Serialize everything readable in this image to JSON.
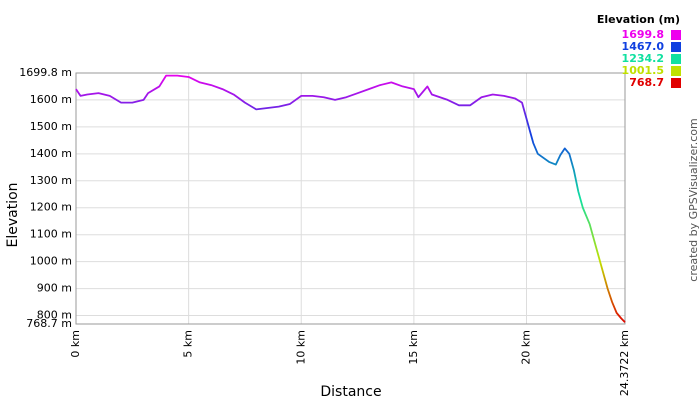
{
  "chart_data": {
    "type": "line",
    "x_label": "Distance",
    "y_label": "Elevation",
    "credit": "created by GPSVisualizer.com",
    "series": [
      {
        "name": "Elevation",
        "x": [
          0,
          0.2,
          0.5,
          1,
          1.5,
          2,
          2.5,
          3,
          3.2,
          3.7,
          4,
          4.5,
          5,
          5.5,
          6,
          6.5,
          7,
          7.5,
          8,
          8.5,
          9,
          9.5,
          10,
          10.5,
          11,
          11.5,
          12,
          12.5,
          13,
          13.5,
          14,
          14.5,
          15,
          15.2,
          15.5,
          15.6,
          15.8,
          16.5,
          17,
          17.5,
          18,
          18.5,
          19,
          19.5,
          19.8,
          20,
          20.3,
          20.5,
          21,
          21.3,
          21.5,
          21.7,
          21.9,
          22.1,
          22.3,
          22.5,
          22.8,
          23,
          23.3,
          23.6,
          23.8,
          24,
          24.2,
          24.3722
        ],
        "values": [
          1640,
          1615,
          1620,
          1625,
          1615,
          1590,
          1590,
          1600,
          1625,
          1650,
          1690,
          1690,
          1685,
          1665,
          1655,
          1640,
          1620,
          1590,
          1565,
          1570,
          1575,
          1585,
          1615,
          1615,
          1610,
          1600,
          1610,
          1625,
          1640,
          1655,
          1665,
          1650,
          1640,
          1610,
          1640,
          1650,
          1620,
          1600,
          1580,
          1580,
          1610,
          1620,
          1615,
          1605,
          1590,
          1530,
          1440,
          1400,
          1370,
          1360,
          1395,
          1420,
          1400,
          1340,
          1260,
          1200,
          1140,
          1080,
          990,
          900,
          850,
          810,
          790,
          775
        ]
      }
    ],
    "color_scale": {
      "title": "Elevation (m)",
      "values": [
        1699.8,
        1467.0,
        1234.2,
        1001.5,
        768.7
      ],
      "value_labels": [
        "1699.8",
        "1467.0",
        "1234.2",
        "1001.5",
        "768.7"
      ],
      "colors": [
        "#ee00ee",
        "#1040e0",
        "#10e0a0",
        "#c0e000",
        "#e00000"
      ]
    },
    "xlim": [
      0,
      24.3722
    ],
    "xticks": [
      {
        "value": 0,
        "label": "0 km"
      },
      {
        "value": 5,
        "label": "5 km"
      },
      {
        "value": 10,
        "label": "10 km"
      },
      {
        "value": 15,
        "label": "15 km"
      },
      {
        "value": 20,
        "label": "20 km"
      },
      {
        "value": 24.3722,
        "label": "24.3722 km"
      }
    ],
    "ylim": [
      768.7,
      1699.8
    ],
    "yticks": [
      {
        "value": 768.7,
        "label": "768.7 m"
      },
      {
        "value": 800,
        "label": "800 m"
      },
      {
        "value": 900,
        "label": "900 m"
      },
      {
        "value": 1000,
        "label": "1000 m"
      },
      {
        "value": 1100,
        "label": "1100 m"
      },
      {
        "value": 1200,
        "label": "1200 m"
      },
      {
        "value": 1300,
        "label": "1300 m"
      },
      {
        "value": 1400,
        "label": "1400 m"
      },
      {
        "value": 1500,
        "label": "1500 m"
      },
      {
        "value": 1600,
        "label": "1600 m"
      },
      {
        "value": 1699.8,
        "label": "1699.8 m"
      }
    ],
    "grid": true
  }
}
